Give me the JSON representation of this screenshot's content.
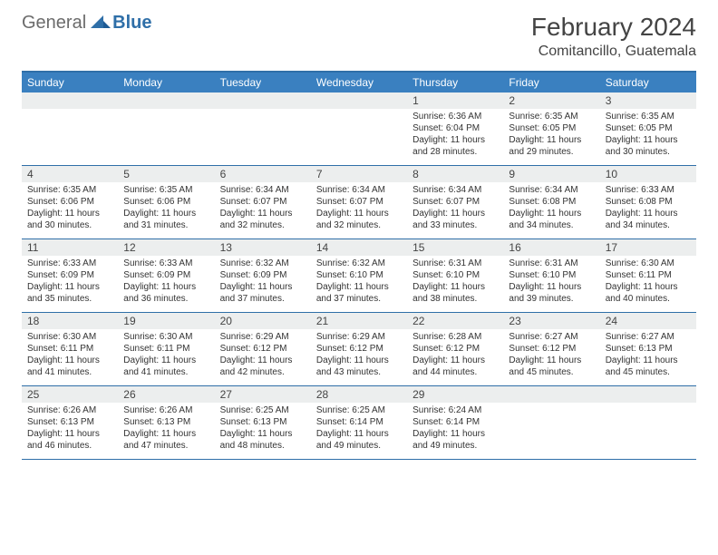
{
  "logo": {
    "general": "General",
    "blue": "Blue"
  },
  "title": "February 2024",
  "location": "Comitancillo, Guatemala",
  "weekdays": [
    "Sunday",
    "Monday",
    "Tuesday",
    "Wednesday",
    "Thursday",
    "Friday",
    "Saturday"
  ],
  "colors": {
    "header_bar": "#3a80c0",
    "rule": "#2f6fa8",
    "daynum_bg": "#eceeee",
    "text": "#333333",
    "logo_grey": "#6b6b6b",
    "logo_blue": "#2f6fa8"
  },
  "weeks": [
    {
      "nums": [
        "",
        "",
        "",
        "",
        "1",
        "2",
        "3"
      ],
      "cells": [
        {
          "empty": true
        },
        {
          "empty": true
        },
        {
          "empty": true
        },
        {
          "empty": true
        },
        {
          "sunrise": "Sunrise: 6:36 AM",
          "sunset": "Sunset: 6:04 PM",
          "day1": "Daylight: 11 hours",
          "day2": "and 28 minutes."
        },
        {
          "sunrise": "Sunrise: 6:35 AM",
          "sunset": "Sunset: 6:05 PM",
          "day1": "Daylight: 11 hours",
          "day2": "and 29 minutes."
        },
        {
          "sunrise": "Sunrise: 6:35 AM",
          "sunset": "Sunset: 6:05 PM",
          "day1": "Daylight: 11 hours",
          "day2": "and 30 minutes."
        }
      ]
    },
    {
      "nums": [
        "4",
        "5",
        "6",
        "7",
        "8",
        "9",
        "10"
      ],
      "cells": [
        {
          "sunrise": "Sunrise: 6:35 AM",
          "sunset": "Sunset: 6:06 PM",
          "day1": "Daylight: 11 hours",
          "day2": "and 30 minutes."
        },
        {
          "sunrise": "Sunrise: 6:35 AM",
          "sunset": "Sunset: 6:06 PM",
          "day1": "Daylight: 11 hours",
          "day2": "and 31 minutes."
        },
        {
          "sunrise": "Sunrise: 6:34 AM",
          "sunset": "Sunset: 6:07 PM",
          "day1": "Daylight: 11 hours",
          "day2": "and 32 minutes."
        },
        {
          "sunrise": "Sunrise: 6:34 AM",
          "sunset": "Sunset: 6:07 PM",
          "day1": "Daylight: 11 hours",
          "day2": "and 32 minutes."
        },
        {
          "sunrise": "Sunrise: 6:34 AM",
          "sunset": "Sunset: 6:07 PM",
          "day1": "Daylight: 11 hours",
          "day2": "and 33 minutes."
        },
        {
          "sunrise": "Sunrise: 6:34 AM",
          "sunset": "Sunset: 6:08 PM",
          "day1": "Daylight: 11 hours",
          "day2": "and 34 minutes."
        },
        {
          "sunrise": "Sunrise: 6:33 AM",
          "sunset": "Sunset: 6:08 PM",
          "day1": "Daylight: 11 hours",
          "day2": "and 34 minutes."
        }
      ]
    },
    {
      "nums": [
        "11",
        "12",
        "13",
        "14",
        "15",
        "16",
        "17"
      ],
      "cells": [
        {
          "sunrise": "Sunrise: 6:33 AM",
          "sunset": "Sunset: 6:09 PM",
          "day1": "Daylight: 11 hours",
          "day2": "and 35 minutes."
        },
        {
          "sunrise": "Sunrise: 6:33 AM",
          "sunset": "Sunset: 6:09 PM",
          "day1": "Daylight: 11 hours",
          "day2": "and 36 minutes."
        },
        {
          "sunrise": "Sunrise: 6:32 AM",
          "sunset": "Sunset: 6:09 PM",
          "day1": "Daylight: 11 hours",
          "day2": "and 37 minutes."
        },
        {
          "sunrise": "Sunrise: 6:32 AM",
          "sunset": "Sunset: 6:10 PM",
          "day1": "Daylight: 11 hours",
          "day2": "and 37 minutes."
        },
        {
          "sunrise": "Sunrise: 6:31 AM",
          "sunset": "Sunset: 6:10 PM",
          "day1": "Daylight: 11 hours",
          "day2": "and 38 minutes."
        },
        {
          "sunrise": "Sunrise: 6:31 AM",
          "sunset": "Sunset: 6:10 PM",
          "day1": "Daylight: 11 hours",
          "day2": "and 39 minutes."
        },
        {
          "sunrise": "Sunrise: 6:30 AM",
          "sunset": "Sunset: 6:11 PM",
          "day1": "Daylight: 11 hours",
          "day2": "and 40 minutes."
        }
      ]
    },
    {
      "nums": [
        "18",
        "19",
        "20",
        "21",
        "22",
        "23",
        "24"
      ],
      "cells": [
        {
          "sunrise": "Sunrise: 6:30 AM",
          "sunset": "Sunset: 6:11 PM",
          "day1": "Daylight: 11 hours",
          "day2": "and 41 minutes."
        },
        {
          "sunrise": "Sunrise: 6:30 AM",
          "sunset": "Sunset: 6:11 PM",
          "day1": "Daylight: 11 hours",
          "day2": "and 41 minutes."
        },
        {
          "sunrise": "Sunrise: 6:29 AM",
          "sunset": "Sunset: 6:12 PM",
          "day1": "Daylight: 11 hours",
          "day2": "and 42 minutes."
        },
        {
          "sunrise": "Sunrise: 6:29 AM",
          "sunset": "Sunset: 6:12 PM",
          "day1": "Daylight: 11 hours",
          "day2": "and 43 minutes."
        },
        {
          "sunrise": "Sunrise: 6:28 AM",
          "sunset": "Sunset: 6:12 PM",
          "day1": "Daylight: 11 hours",
          "day2": "and 44 minutes."
        },
        {
          "sunrise": "Sunrise: 6:27 AM",
          "sunset": "Sunset: 6:12 PM",
          "day1": "Daylight: 11 hours",
          "day2": "and 45 minutes."
        },
        {
          "sunrise": "Sunrise: 6:27 AM",
          "sunset": "Sunset: 6:13 PM",
          "day1": "Daylight: 11 hours",
          "day2": "and 45 minutes."
        }
      ]
    },
    {
      "nums": [
        "25",
        "26",
        "27",
        "28",
        "29",
        "",
        ""
      ],
      "cells": [
        {
          "sunrise": "Sunrise: 6:26 AM",
          "sunset": "Sunset: 6:13 PM",
          "day1": "Daylight: 11 hours",
          "day2": "and 46 minutes."
        },
        {
          "sunrise": "Sunrise: 6:26 AM",
          "sunset": "Sunset: 6:13 PM",
          "day1": "Daylight: 11 hours",
          "day2": "and 47 minutes."
        },
        {
          "sunrise": "Sunrise: 6:25 AM",
          "sunset": "Sunset: 6:13 PM",
          "day1": "Daylight: 11 hours",
          "day2": "and 48 minutes."
        },
        {
          "sunrise": "Sunrise: 6:25 AM",
          "sunset": "Sunset: 6:14 PM",
          "day1": "Daylight: 11 hours",
          "day2": "and 49 minutes."
        },
        {
          "sunrise": "Sunrise: 6:24 AM",
          "sunset": "Sunset: 6:14 PM",
          "day1": "Daylight: 11 hours",
          "day2": "and 49 minutes."
        },
        {
          "empty": true
        },
        {
          "empty": true
        }
      ]
    }
  ]
}
